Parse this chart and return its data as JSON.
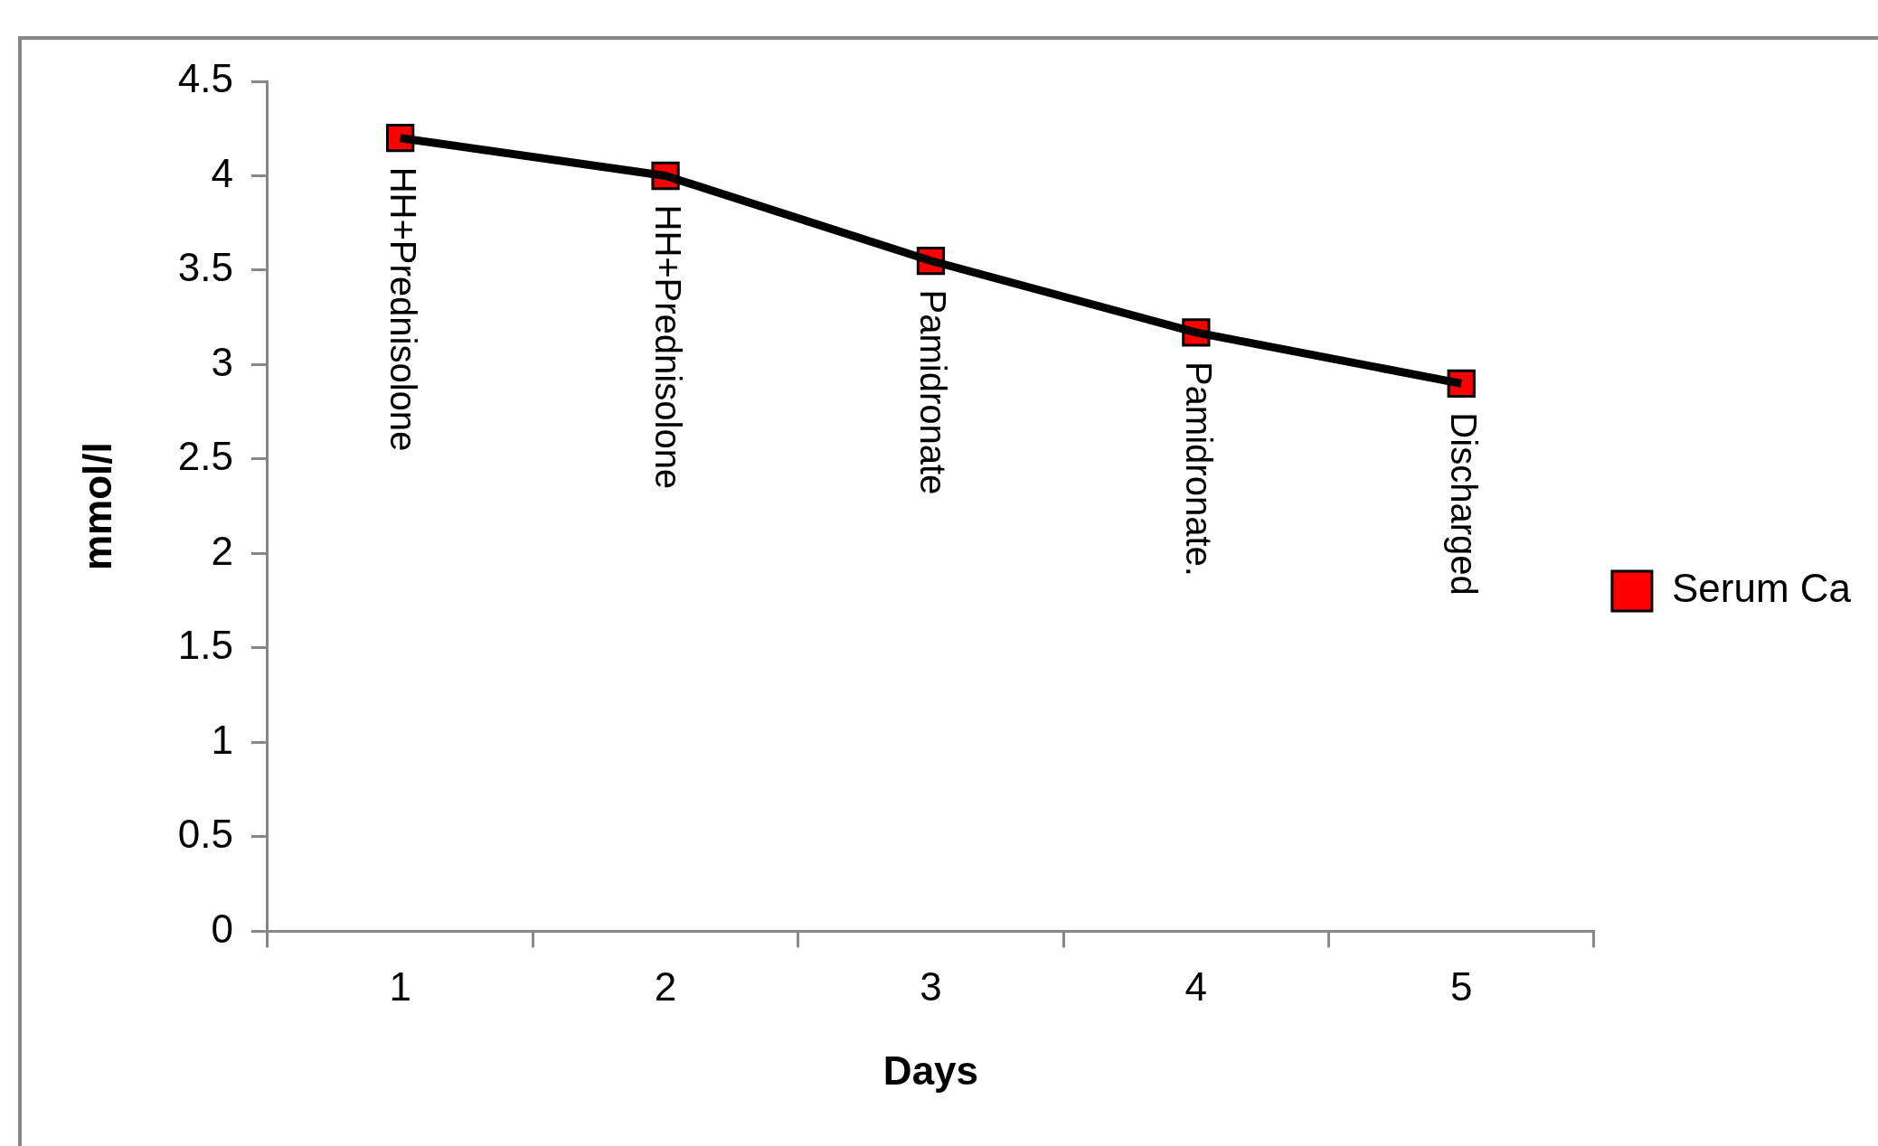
{
  "chart_data": {
    "type": "line",
    "xlabel": "Days",
    "ylabel": "mmol/l",
    "categories": [
      "1",
      "2",
      "3",
      "4",
      "5"
    ],
    "series": [
      {
        "name": "Serum Ca",
        "color": "#ff0000",
        "values": [
          4.2,
          4.0,
          3.55,
          3.17,
          2.9
        ]
      }
    ],
    "ylim": [
      0,
      4.5
    ],
    "yticks": [
      0,
      0.5,
      1,
      1.5,
      2,
      2.5,
      3,
      3.5,
      4,
      4.5
    ],
    "annotations": [
      {
        "text": "HH+Prednisolone",
        "x": "1",
        "y": 4.2
      },
      {
        "text": "HH+Prednisolone",
        "x": "2",
        "y": 4.0
      },
      {
        "text": "Pamidronate",
        "x": "3",
        "y": 3.55
      },
      {
        "text": "Pamidronate.",
        "x": "4",
        "y": 3.17
      },
      {
        "text": "Discharged",
        "x": "5",
        "y": 2.9
      }
    ],
    "grid": false,
    "legend": "right",
    "marker": "square",
    "line_style": "solid"
  }
}
